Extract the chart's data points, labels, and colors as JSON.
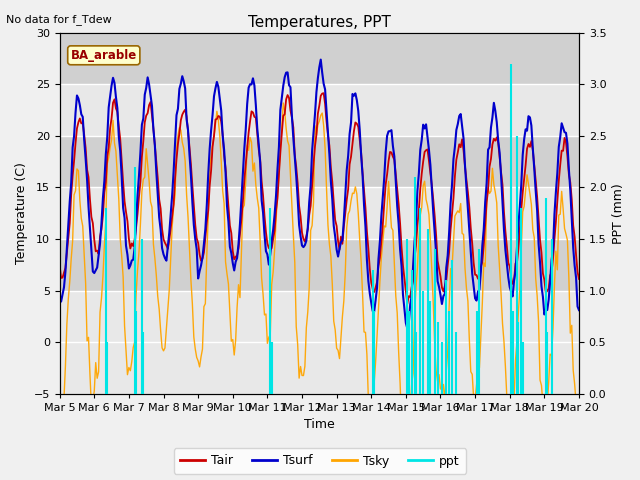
{
  "title": "Temperatures, PPT",
  "note": "No data for f_Tdew",
  "station_label": "BA_arable",
  "xlabel": "Time",
  "ylabel_left": "Temperature (C)",
  "ylabel_right": "PPT (mm)",
  "ylim_left": [
    -5,
    30
  ],
  "ylim_right": [
    0.0,
    3.5
  ],
  "xlim": [
    0,
    360
  ],
  "xtick_positions": [
    0,
    24,
    48,
    72,
    96,
    120,
    144,
    168,
    192,
    216,
    240,
    264,
    288,
    312,
    336,
    360
  ],
  "xtick_labels": [
    "Mar 5",
    "Mar 6",
    "Mar 7",
    "Mar 8",
    "Mar 9",
    "Mar 10",
    "Mar 11",
    "Mar 12",
    "Mar 13",
    "Mar 14",
    "Mar 15",
    "Mar 16",
    "Mar 17",
    "Mar 18",
    "Mar 19",
    "Mar 20"
  ],
  "yticks_right": [
    0.0,
    0.5,
    1.0,
    1.5,
    2.0,
    2.5,
    3.0,
    3.5
  ],
  "yticks_left": [
    -5,
    0,
    5,
    10,
    15,
    20,
    25,
    30
  ],
  "color_tair": "#cc0000",
  "color_tsurf": "#0000cc",
  "color_tsky": "#ffa500",
  "color_ppt": "#00e5e5",
  "bg_color": "#d8d8d8",
  "plot_bg": "#e8e8e8",
  "grid_color": "#ffffff",
  "band_color": "#d0d0d0",
  "fig_bg": "#f0f0f0"
}
